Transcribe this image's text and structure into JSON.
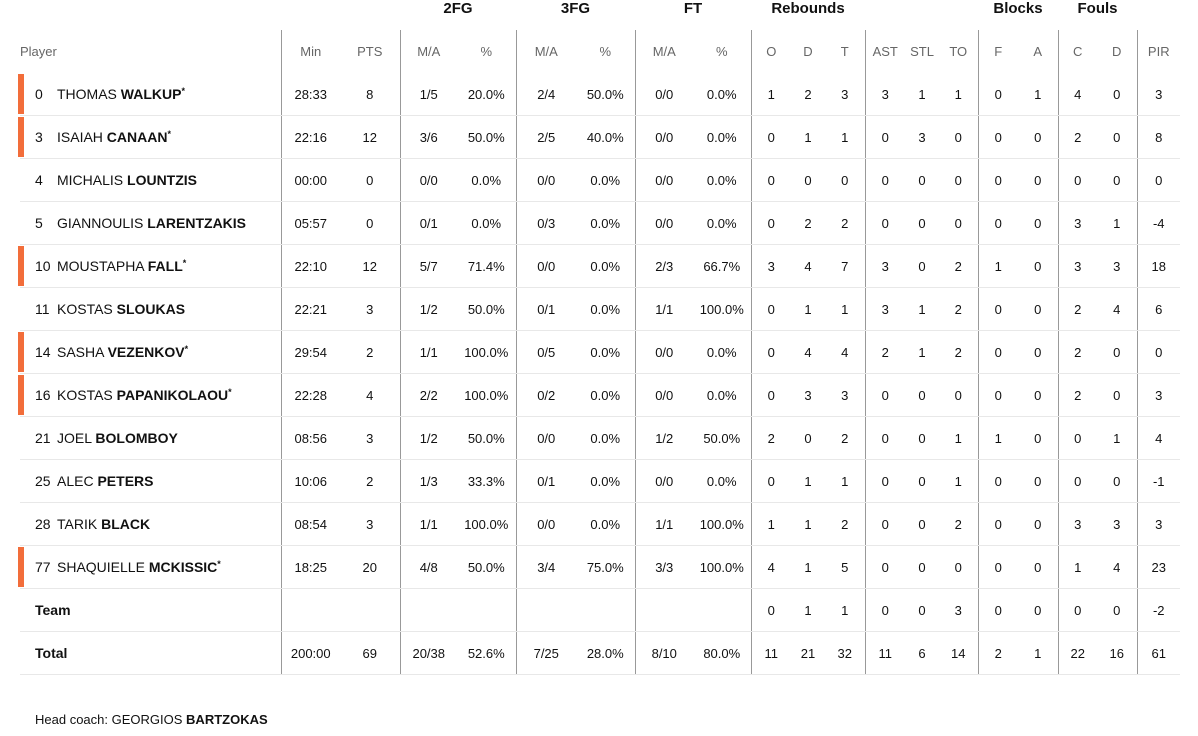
{
  "groups": {
    "fg2": "2FG",
    "fg3": "3FG",
    "ft": "FT",
    "reb": "Rebounds",
    "blk": "Blocks",
    "fouls": "Fouls"
  },
  "columns": [
    "Player",
    "Min",
    "PTS",
    "M/A",
    "%",
    "M/A",
    "%",
    "M/A",
    "%",
    "O",
    "D",
    "T",
    "AST",
    "STL",
    "TO",
    "F",
    "A",
    "C",
    "D",
    "PIR"
  ],
  "players": [
    {
      "no": "0",
      "first": "THOMAS",
      "last": "WALKUP",
      "starter": true,
      "stats": [
        "28:33",
        "8",
        "1/5",
        "20.0%",
        "2/4",
        "50.0%",
        "0/0",
        "0.0%",
        "1",
        "2",
        "3",
        "3",
        "1",
        "1",
        "0",
        "1",
        "4",
        "0",
        "3"
      ]
    },
    {
      "no": "3",
      "first": "ISAIAH",
      "last": "CANAAN",
      "starter": true,
      "stats": [
        "22:16",
        "12",
        "3/6",
        "50.0%",
        "2/5",
        "40.0%",
        "0/0",
        "0.0%",
        "0",
        "1",
        "1",
        "0",
        "3",
        "0",
        "0",
        "0",
        "2",
        "0",
        "8"
      ]
    },
    {
      "no": "4",
      "first": "MICHALIS",
      "last": "LOUNTZIS",
      "starter": false,
      "stats": [
        "00:00",
        "0",
        "0/0",
        "0.0%",
        "0/0",
        "0.0%",
        "0/0",
        "0.0%",
        "0",
        "0",
        "0",
        "0",
        "0",
        "0",
        "0",
        "0",
        "0",
        "0",
        "0"
      ]
    },
    {
      "no": "5",
      "first": "GIANNOULIS",
      "last": "LARENTZAKIS",
      "starter": false,
      "stats": [
        "05:57",
        "0",
        "0/1",
        "0.0%",
        "0/3",
        "0.0%",
        "0/0",
        "0.0%",
        "0",
        "2",
        "2",
        "0",
        "0",
        "0",
        "0",
        "0",
        "3",
        "1",
        "-4"
      ]
    },
    {
      "no": "10",
      "first": "MOUSTAPHA",
      "last": "FALL",
      "starter": true,
      "stats": [
        "22:10",
        "12",
        "5/7",
        "71.4%",
        "0/0",
        "0.0%",
        "2/3",
        "66.7%",
        "3",
        "4",
        "7",
        "3",
        "0",
        "2",
        "1",
        "0",
        "3",
        "3",
        "18"
      ]
    },
    {
      "no": "11",
      "first": "KOSTAS",
      "last": "SLOUKAS",
      "starter": false,
      "stats": [
        "22:21",
        "3",
        "1/2",
        "50.0%",
        "0/1",
        "0.0%",
        "1/1",
        "100.0%",
        "0",
        "1",
        "1",
        "3",
        "1",
        "2",
        "0",
        "0",
        "2",
        "4",
        "6"
      ]
    },
    {
      "no": "14",
      "first": "SASHA",
      "last": "VEZENKOV",
      "starter": true,
      "stats": [
        "29:54",
        "2",
        "1/1",
        "100.0%",
        "0/5",
        "0.0%",
        "0/0",
        "0.0%",
        "0",
        "4",
        "4",
        "2",
        "1",
        "2",
        "0",
        "0",
        "2",
        "0",
        "0"
      ]
    },
    {
      "no": "16",
      "first": "KOSTAS",
      "last": "PAPANIKOLAOU",
      "starter": true,
      "stats": [
        "22:28",
        "4",
        "2/2",
        "100.0%",
        "0/2",
        "0.0%",
        "0/0",
        "0.0%",
        "0",
        "3",
        "3",
        "0",
        "0",
        "0",
        "0",
        "0",
        "2",
        "0",
        "3"
      ]
    },
    {
      "no": "21",
      "first": "JOEL",
      "last": "BOLOMBOY",
      "starter": false,
      "stats": [
        "08:56",
        "3",
        "1/2",
        "50.0%",
        "0/0",
        "0.0%",
        "1/2",
        "50.0%",
        "2",
        "0",
        "2",
        "0",
        "0",
        "1",
        "1",
        "0",
        "0",
        "1",
        "4"
      ]
    },
    {
      "no": "25",
      "first": "ALEC",
      "last": "PETERS",
      "starter": false,
      "stats": [
        "10:06",
        "2",
        "1/3",
        "33.3%",
        "0/1",
        "0.0%",
        "0/0",
        "0.0%",
        "0",
        "1",
        "1",
        "0",
        "0",
        "1",
        "0",
        "0",
        "0",
        "0",
        "-1"
      ]
    },
    {
      "no": "28",
      "first": "TARIK",
      "last": "BLACK",
      "starter": false,
      "stats": [
        "08:54",
        "3",
        "1/1",
        "100.0%",
        "0/0",
        "0.0%",
        "1/1",
        "100.0%",
        "1",
        "1",
        "2",
        "0",
        "0",
        "2",
        "0",
        "0",
        "3",
        "3",
        "3"
      ]
    },
    {
      "no": "77",
      "first": "SHAQUIELLE",
      "last": "MCKISSIC",
      "starter": true,
      "stats": [
        "18:25",
        "20",
        "4/8",
        "50.0%",
        "3/4",
        "75.0%",
        "3/3",
        "100.0%",
        "4",
        "1",
        "5",
        "0",
        "0",
        "0",
        "0",
        "0",
        "1",
        "4",
        "23"
      ]
    }
  ],
  "team": {
    "label": "Team",
    "stats": [
      "",
      "",
      "",
      "",
      "",
      "",
      "",
      "",
      "0",
      "1",
      "1",
      "0",
      "0",
      "3",
      "0",
      "0",
      "0",
      "0",
      "-2"
    ]
  },
  "total": {
    "label": "Total",
    "stats": [
      "200:00",
      "69",
      "20/38",
      "52.6%",
      "7/25",
      "28.0%",
      "8/10",
      "80.0%",
      "11",
      "21",
      "32",
      "11",
      "6",
      "14",
      "2",
      "1",
      "22",
      "16",
      "61"
    ]
  },
  "coach": {
    "label": "Head coach:",
    "first": "GEORGIOS",
    "last": "BARTZOKAS"
  },
  "colors": {
    "starter_bar": "#f26d3a"
  }
}
